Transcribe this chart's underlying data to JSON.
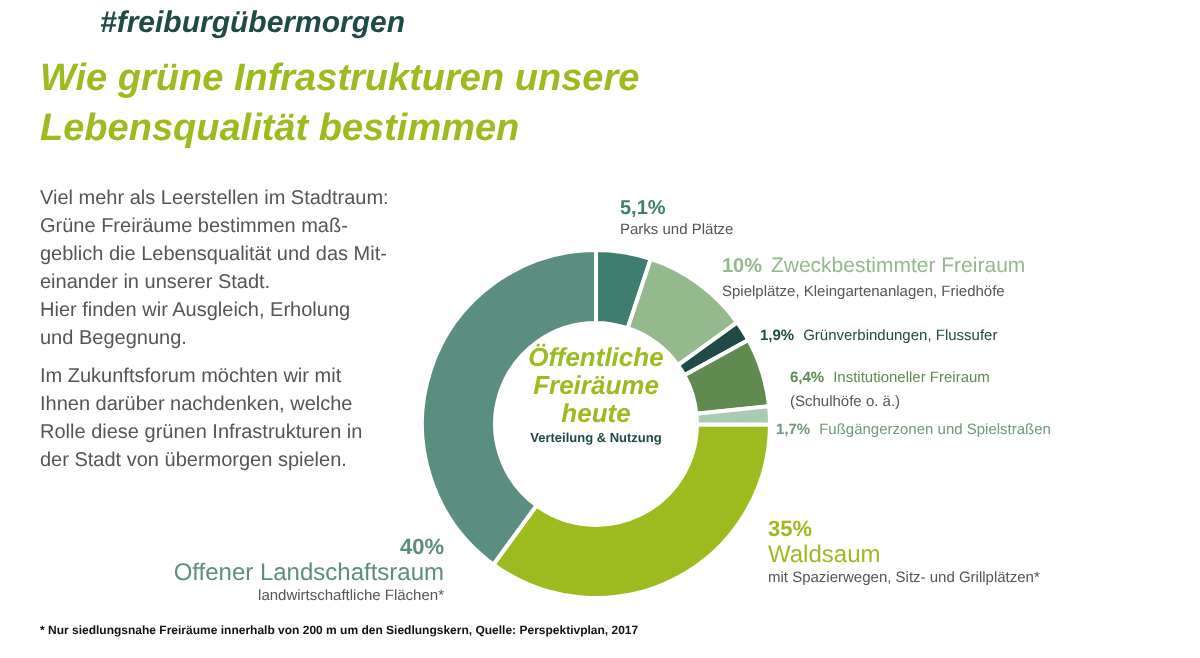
{
  "chart_data": {
    "type": "donut",
    "subtitle": "#freiburgübermorgen",
    "title": "Wie grüne Infrastrukturen unsere Lebensqualität bestimmen",
    "categories": [
      "Parks und Plätze",
      "Zweckbestimmter Freiraum",
      "Grünverbindungen, Flussufer",
      "Institutioneller Freiraum",
      "Fußgängerzonen und Spielstraßen",
      "Waldsaum",
      "Offener Landschaftsraum"
    ],
    "values": [
      5.1,
      10,
      1.9,
      6.4,
      1.7,
      35,
      40
    ],
    "value_labels": [
      "5,1%",
      "10%",
      "1,9%",
      "6,4%",
      "1,7%",
      "35%",
      "40%"
    ],
    "colors": [
      "#3f7d70",
      "#93b98c",
      "#1f4a45",
      "#5f8b50",
      "#a9cbb3",
      "#9dbb1f",
      "#5b8d81"
    ],
    "legend": false,
    "annotations": [
      "Viel mehr als Leerstellen im Stadtraum:\nGrüne Freiräume bestimmen maß-\ngeblich die Lebensqualität und das Mit-\neinander in unserer Stadt.\nHier finden wir Ausgleich, Erholung\nund Begegnung.",
      "Im Zukunftsforum möchten wir mit\nIhnen darüber nachdenken, welche\nRolle diese grünen Infrastrukturen in\nder Stadt von übermorgen spielen.",
      "Öffentliche Freiräume heute",
      "Verteilung & Nutzung",
      "* Nur siedlungsnahe Freiräume innerhalb von 200 m um den Siedlungskern,  Quelle: Perspektivplan, 2017",
      "Spielplätze, Kleingartenanlagen, Friedhöfe",
      "(Schulhöfe o. ä.)",
      "mit Spazierwegen, Sitz- und Grillplätzen*",
      "landwirtschaftliche Flächen*"
    ]
  }
}
